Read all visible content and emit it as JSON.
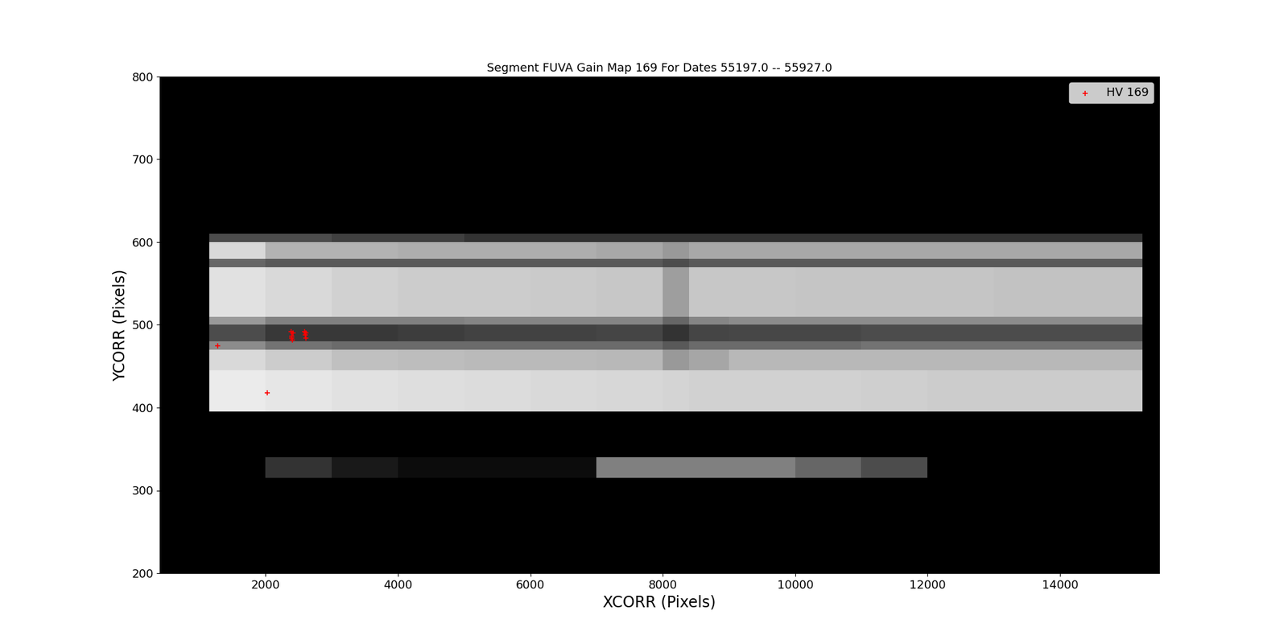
{
  "chart_data": {
    "type": "heatmap",
    "title": "Segment FUVA Gain Map 169 For Dates 55197.0 -- 55927.0",
    "x_label": "XCORR (Pixels)",
    "y_label": "YCORR (Pixels)",
    "xlim": [
      400,
      15500
    ],
    "xticks": [
      2000,
      4000,
      6000,
      8000,
      10000,
      12000,
      14000
    ],
    "ylim": [
      200,
      800
    ],
    "yticks": [
      200,
      300,
      400,
      500,
      600,
      700,
      800
    ],
    "x_edges": [
      400,
      1150,
      2000,
      3000,
      4000,
      5000,
      6000,
      7000,
      8000,
      8400,
      9000,
      10000,
      11000,
      12000,
      13000,
      14000,
      15250,
      15500
    ],
    "y_edges": [
      200,
      315,
      340,
      395,
      445,
      470,
      480,
      500,
      510,
      570,
      580,
      600,
      610,
      730,
      800
    ],
    "cells": [
      [
        0,
        0,
        0,
        0,
        0,
        0,
        0,
        0,
        0,
        0,
        0,
        0,
        0,
        0,
        0,
        0,
        0
      ],
      [
        0,
        0,
        0.2,
        0.1,
        0.05,
        0.05,
        0.05,
        0.5,
        0.5,
        0.5,
        0.5,
        0.4,
        0.3,
        0,
        0,
        0,
        0
      ],
      [
        0,
        0,
        0,
        0,
        0,
        0,
        0,
        0,
        0,
        0,
        0,
        0,
        0,
        0,
        0,
        0,
        0
      ],
      [
        0,
        0.92,
        0.9,
        0.88,
        0.87,
        0.86,
        0.85,
        0.84,
        0.83,
        0.82,
        0.82,
        0.82,
        0.81,
        0.8,
        0.8,
        0.8,
        0
      ],
      [
        0,
        0.85,
        0.8,
        0.75,
        0.74,
        0.73,
        0.73,
        0.72,
        0.6,
        0.65,
        0.72,
        0.72,
        0.72,
        0.72,
        0.72,
        0.72,
        0
      ],
      [
        0,
        0.55,
        0.45,
        0.42,
        0.42,
        0.42,
        0.42,
        0.42,
        0.35,
        0.42,
        0.42,
        0.42,
        0.45,
        0.45,
        0.45,
        0.45,
        0
      ],
      [
        0,
        0.3,
        0.22,
        0.22,
        0.24,
        0.26,
        0.26,
        0.27,
        0.2,
        0.27,
        0.28,
        0.28,
        0.3,
        0.3,
        0.3,
        0.3,
        0
      ],
      [
        0,
        0.6,
        0.5,
        0.5,
        0.5,
        0.52,
        0.52,
        0.52,
        0.4,
        0.52,
        0.55,
        0.55,
        0.55,
        0.55,
        0.55,
        0.55,
        0
      ],
      [
        0,
        0.88,
        0.85,
        0.82,
        0.8,
        0.8,
        0.79,
        0.78,
        0.62,
        0.78,
        0.78,
        0.77,
        0.77,
        0.77,
        0.76,
        0.76,
        0
      ],
      [
        0,
        0.4,
        0.35,
        0.35,
        0.35,
        0.35,
        0.35,
        0.35,
        0.3,
        0.35,
        0.35,
        0.35,
        0.35,
        0.35,
        0.35,
        0.35,
        0
      ],
      [
        0,
        0.85,
        0.7,
        0.7,
        0.68,
        0.68,
        0.68,
        0.66,
        0.6,
        0.66,
        0.66,
        0.66,
        0.66,
        0.66,
        0.66,
        0.66,
        0
      ],
      [
        0,
        0.3,
        0.3,
        0.25,
        0.25,
        0.2,
        0.2,
        0.2,
        0.2,
        0.2,
        0.2,
        0.2,
        0.2,
        0.2,
        0.2,
        0.2,
        0
      ],
      [
        0,
        0,
        0,
        0,
        0,
        0,
        0,
        0,
        0,
        0,
        0,
        0,
        0,
        0,
        0,
        0,
        0
      ],
      [
        0,
        0,
        0,
        0,
        0,
        0,
        0,
        0,
        0,
        0,
        0,
        0,
        0,
        0,
        0,
        0,
        0
      ]
    ],
    "clim": [
      0,
      1
    ],
    "series": [
      {
        "name": "HV 169",
        "type": "scatter",
        "color": "red",
        "marker": "+",
        "x": [
          1280,
          2020,
          2380,
          2390,
          2400,
          2410,
          2395,
          2590,
          2600,
          2610,
          2605
        ],
        "y": [
          475,
          418,
          492,
          486,
          482,
          490,
          484,
          492,
          488,
          484,
          490
        ]
      }
    ],
    "legend": "upper right"
  }
}
